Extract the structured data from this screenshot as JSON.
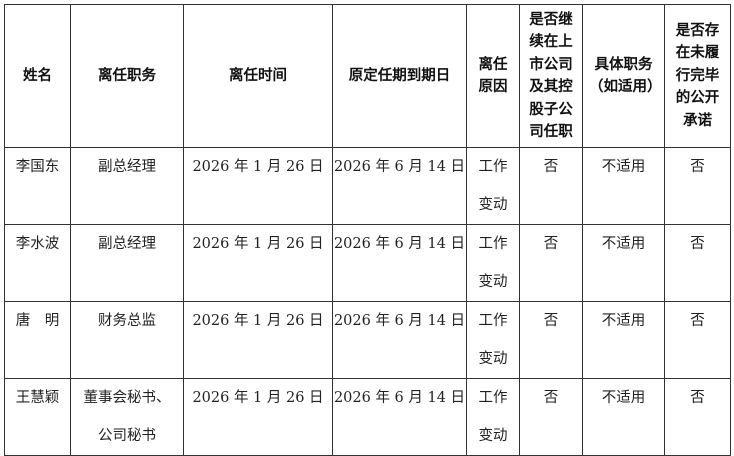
{
  "table": {
    "headers": [
      "姓名",
      "离任职务",
      "离任时间",
      "原定任期到期日",
      "离任原因",
      "是否继续在上市公司及其控股子公司任职",
      "具体职务（如适用）",
      "是否存在未履行完毕的公开承诺"
    ],
    "rows": [
      [
        "李国东",
        "副总经理",
        "2026 年 1 月 26 日",
        "2026 年 6 月 14 日",
        "工作变动",
        "否",
        "不适用",
        "否"
      ],
      [
        "李水波",
        "副总经理",
        "2026 年 1 月 26 日",
        "2026 年 6 月 14 日",
        "工作变动",
        "否",
        "不适用",
        "否"
      ],
      [
        "唐　明",
        "财务总监",
        "2026 年 1 月 26 日",
        "2026 年 6 月 14 日",
        "工作变动",
        "否",
        "不适用",
        "否"
      ],
      [
        "王慧颖",
        "董事会秘书、公司秘书",
        "2026 年 1 月 26 日",
        "2026 年 6 月 14 日",
        "工作变动",
        "否",
        "不适用",
        "否"
      ]
    ]
  }
}
